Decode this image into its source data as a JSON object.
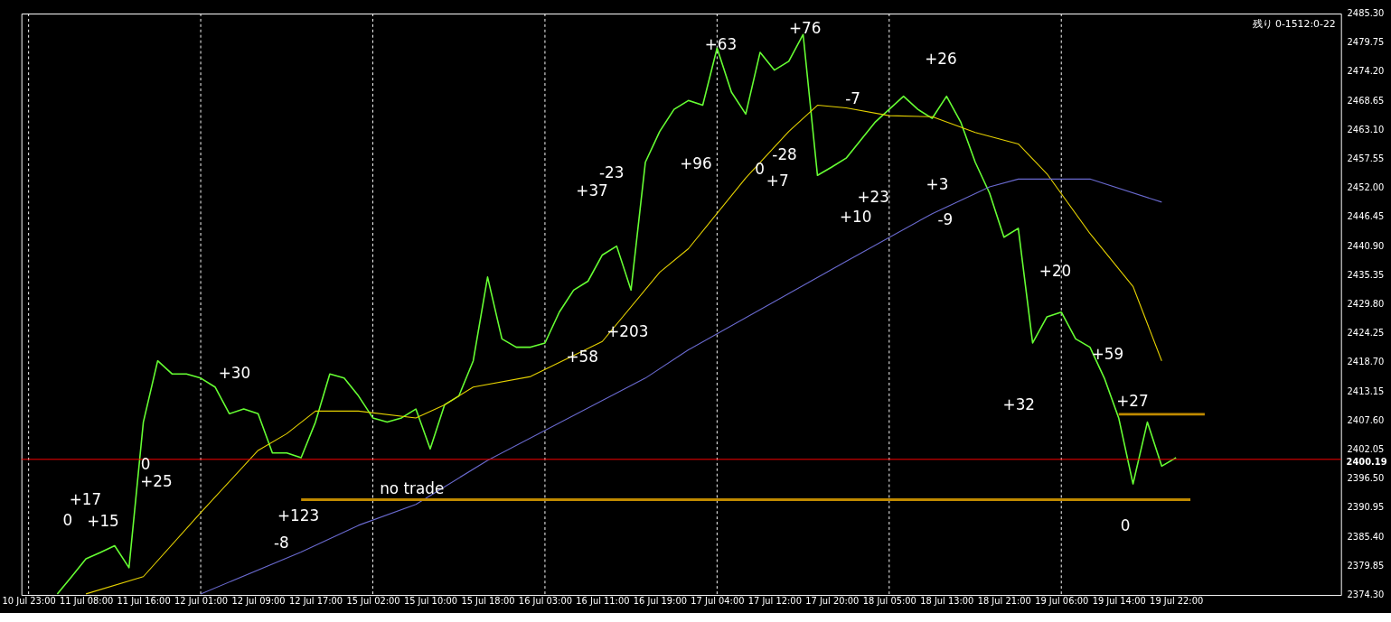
{
  "chart_data": {
    "type": "line",
    "grid": "x",
    "line_style": "solid",
    "categories": [
      "10 Jul 23:00",
      null,
      null,
      null,
      "11 Jul 08:00",
      null,
      null,
      null,
      "11 Jul 16:00",
      null,
      null,
      null,
      "12 Jul 01:00",
      null,
      null,
      null,
      "12 Jul 09:00",
      null,
      null,
      null,
      "12 Jul 17:00",
      null,
      null,
      null,
      "15 Jul 02:00",
      null,
      null,
      null,
      "15 Jul 10:00",
      null,
      null,
      null,
      "15 Jul 18:00",
      null,
      null,
      null,
      "16 Jul 03:00",
      null,
      null,
      null,
      "16 Jul 11:00",
      null,
      null,
      null,
      "16 Jul 19:00",
      null,
      null,
      null,
      "17 Jul 04:00",
      null,
      null,
      null,
      "17 Jul 12:00",
      null,
      null,
      null,
      "17 Jul 20:00",
      null,
      null,
      null,
      "18 Jul 05:00",
      null,
      null,
      null,
      "18 Jul 13:00",
      null,
      null,
      null,
      "18 Jul 21:00",
      null,
      null,
      null,
      "19 Jul 06:00",
      null,
      null,
      null,
      "19 Jul 14:00",
      null,
      null,
      null,
      "19 Jul 22:00",
      null,
      null,
      null,
      null,
      null,
      null,
      null,
      null,
      null,
      null,
      null
    ],
    "ylim": [
      2374.3,
      2485.3
    ],
    "yticks": [
      {
        "value": 2374.3,
        "label": "2374.30"
      },
      {
        "value": 2379.85,
        "label": "2379.85"
      },
      {
        "value": 2385.4,
        "label": "2385.40"
      },
      {
        "value": 2390.95,
        "label": "2390.95"
      },
      {
        "value": 2396.5,
        "label": "2396.50"
      },
      {
        "value": 2402.05,
        "label": "2402.05"
      },
      {
        "value": 2407.6,
        "label": "2407.60"
      },
      {
        "value": 2413.15,
        "label": "2413.15"
      },
      {
        "value": 2418.7,
        "label": "2418.70"
      },
      {
        "value": 2424.25,
        "label": "2424.25"
      },
      {
        "value": 2429.8,
        "label": "2429.80"
      },
      {
        "value": 2435.35,
        "label": "2435.35"
      },
      {
        "value": 2440.9,
        "label": "2440.90"
      },
      {
        "value": 2446.45,
        "label": "2446.45"
      },
      {
        "value": 2452.0,
        "label": "2452.00"
      },
      {
        "value": 2457.55,
        "label": "2457.55"
      },
      {
        "value": 2463.1,
        "label": "2463.10"
      },
      {
        "value": 2468.65,
        "label": "2468.65"
      },
      {
        "value": 2474.2,
        "label": "2474.20"
      },
      {
        "value": 2479.75,
        "label": "2479.75"
      },
      {
        "value": 2485.3,
        "label": "2485.30"
      }
    ],
    "series": [
      {
        "color": "#66ff33",
        "values": [
          null,
          null,
          2374.5,
          2377.8,
          2381.2,
          2382.4,
          2383.7,
          2379.5,
          2407.3,
          2419.0,
          2416.5,
          2416.5,
          2415.7,
          2414.0,
          2408.9,
          2409.8,
          2408.9,
          2401.4,
          2401.4,
          2400.5,
          2407.3,
          2416.5,
          2415.7,
          2412.3,
          2408.1,
          2407.3,
          2408.1,
          2409.8,
          2402.2,
          2410.6,
          2412.3,
          2419.0,
          2435.0,
          2423.2,
          2421.6,
          2421.6,
          2422.4,
          2428.3,
          2432.5,
          2434.2,
          2439.2,
          2440.9,
          2432.5,
          2456.9,
          2462.8,
          2467.0,
          2468.7,
          2467.8,
          2478.7,
          2470.3,
          2466.1,
          2477.9,
          2474.5,
          2476.2,
          2481.3,
          2454.4,
          2456.0,
          2457.7,
          2461.1,
          2464.5,
          2467.0,
          2469.5,
          2467.0,
          2465.3,
          2469.5,
          2464.5,
          2456.9,
          2451.0,
          2442.6,
          2444.3,
          2422.4,
          2427.4,
          2428.3,
          2423.2,
          2421.6,
          2415.7,
          2408.1,
          2395.5,
          2407.3,
          2398.9,
          2400.5,
          null,
          null,
          null,
          null,
          null,
          null,
          null,
          null,
          null,
          null,
          null
        ]
      },
      {
        "color": "#e6d200",
        "values": [
          null,
          null,
          null,
          null,
          2374.5,
          null,
          null,
          null,
          2377.8,
          null,
          null,
          null,
          2390.0,
          null,
          null,
          null,
          2401.9,
          null,
          2405.1,
          null,
          2409.4,
          null,
          null,
          2409.4,
          null,
          null,
          null,
          2408.1,
          null,
          2410.6,
          null,
          2414.0,
          null,
          null,
          null,
          2416.0,
          null,
          null,
          null,
          null,
          2422.7,
          null,
          null,
          null,
          2435.9,
          null,
          2440.4,
          null,
          null,
          null,
          2453.9,
          null,
          null,
          2462.8,
          null,
          2467.8,
          null,
          2467.3,
          null,
          null,
          2465.8,
          null,
          null,
          2465.6,
          null,
          null,
          2462.6,
          null,
          null,
          2460.4,
          null,
          2454.7,
          null,
          null,
          2443.3,
          null,
          null,
          2433.2,
          null,
          2419.0,
          null,
          null,
          null,
          null,
          null,
          null,
          null,
          null,
          null,
          null,
          null,
          null
        ]
      },
      {
        "color": "#6a6ad0",
        "values": [
          null,
          null,
          null,
          null,
          null,
          null,
          null,
          null,
          null,
          null,
          null,
          null,
          2374.5,
          null,
          null,
          null,
          null,
          null,
          null,
          2382.5,
          null,
          null,
          null,
          2387.6,
          null,
          null,
          null,
          2391.6,
          null,
          null,
          null,
          null,
          2400.0,
          null,
          null,
          null,
          null,
          null,
          null,
          null,
          null,
          null,
          null,
          2415.7,
          null,
          null,
          2421.1,
          null,
          null,
          null,
          null,
          null,
          null,
          null,
          null,
          null,
          null,
          2438.0,
          null,
          null,
          null,
          null,
          null,
          2447.1,
          null,
          null,
          null,
          2452.2,
          null,
          2453.7,
          null,
          null,
          null,
          null,
          2453.7,
          null,
          null,
          null,
          null,
          2449.3,
          null,
          null,
          null,
          null,
          null,
          null,
          null,
          null,
          null,
          null,
          null,
          null
        ]
      },
      {
        "color": "#c08a00",
        "values": [
          null,
          null,
          null,
          null,
          null,
          null,
          null,
          null,
          null,
          null,
          null,
          null,
          null,
          null,
          null,
          null,
          null,
          null,
          null,
          2392.5,
          null,
          null,
          null,
          null,
          null,
          null,
          null,
          null,
          null,
          null,
          null,
          null,
          null,
          null,
          null,
          null,
          null,
          null,
          null,
          null,
          null,
          null,
          null,
          null,
          null,
          null,
          null,
          null,
          null,
          null,
          null,
          null,
          null,
          null,
          null,
          null,
          null,
          null,
          null,
          null,
          null,
          null,
          null,
          null,
          null,
          null,
          null,
          null,
          null,
          null,
          null,
          null,
          null,
          null,
          null,
          null,
          null,
          null,
          null,
          null,
          null,
          2392.5,
          null,
          null,
          null,
          null,
          null,
          null,
          null,
          null,
          null,
          null
        ]
      },
      {
        "color": "#c08a00",
        "values": [
          null,
          null,
          null,
          null,
          null,
          null,
          null,
          null,
          null,
          null,
          null,
          null,
          null,
          null,
          null,
          null,
          null,
          null,
          null,
          null,
          null,
          null,
          null,
          null,
          null,
          null,
          null,
          null,
          null,
          null,
          null,
          null,
          null,
          null,
          null,
          null,
          null,
          null,
          null,
          null,
          null,
          null,
          null,
          null,
          null,
          null,
          null,
          null,
          null,
          null,
          null,
          null,
          null,
          null,
          null,
          null,
          null,
          null,
          null,
          null,
          null,
          null,
          null,
          null,
          null,
          null,
          null,
          null,
          null,
          null,
          null,
          null,
          null,
          null,
          null,
          null,
          2408.8,
          null,
          null,
          null,
          null,
          null,
          2408.8,
          null,
          null,
          null,
          null,
          null,
          null,
          null,
          null,
          null
        ]
      }
    ],
    "ref_lines": [
      {
        "axis": "y",
        "value": 2400.19,
        "label": "2400.19",
        "color": "#ff0000"
      }
    ],
    "annotations": [
      "残り 0-1512:0-22",
      "+17",
      "0",
      "+15",
      "0",
      "+25",
      "+30",
      "+123",
      "-8",
      "no trade",
      "+63",
      "+76",
      "-23",
      "+37",
      "+96",
      "0",
      "+7",
      "-28",
      "-7",
      "+23",
      "+10",
      "+203",
      "+58",
      "+26",
      "+3",
      "-9",
      "+20",
      "+59",
      "+27",
      "+32",
      "0"
    ]
  }
}
